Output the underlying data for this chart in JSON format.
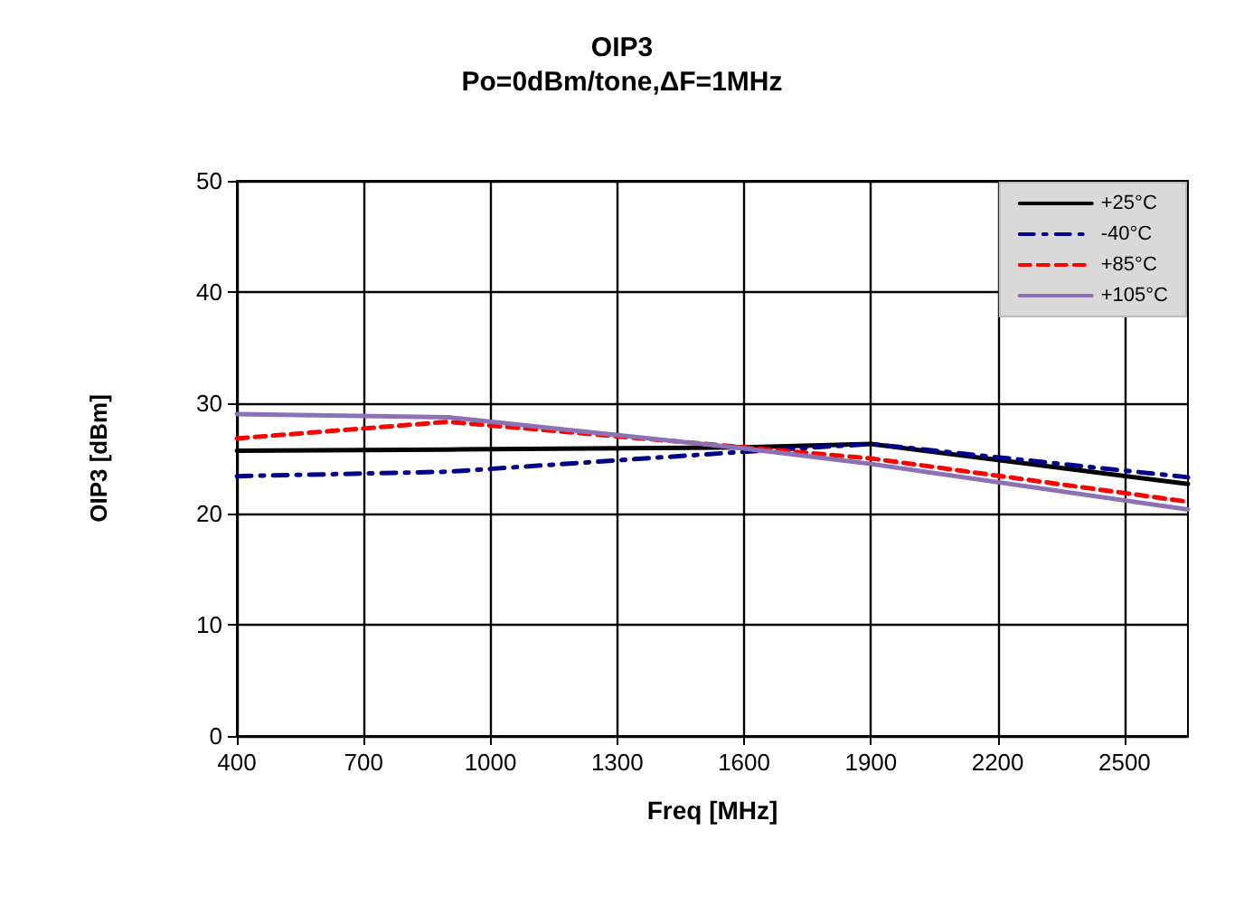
{
  "chart_data": {
    "type": "line",
    "title": "OIP3",
    "subtitle": "Po=0dBm/tone,ΔF=1MHz",
    "xlabel": "Freq [MHz]",
    "ylabel": "OIP3 [dBm]",
    "x": [
      400,
      900,
      1600,
      1900,
      2650
    ],
    "series": [
      {
        "name": "+25°C",
        "color": "#000000",
        "line_style": "solid",
        "values": [
          25.7,
          25.8,
          26.0,
          26.3,
          22.7
        ]
      },
      {
        "name": "-40°C",
        "color": "#00008b",
        "line_style": "dashdot",
        "values": [
          23.4,
          23.8,
          25.6,
          26.3,
          23.3
        ]
      },
      {
        "name": "+85°C",
        "color": "#ff0000",
        "line_style": "dashed",
        "values": [
          26.8,
          28.3,
          26.0,
          25.0,
          21.1
        ]
      },
      {
        "name": "+105°C",
        "color": "#8c72b4",
        "line_style": "solid",
        "values": [
          29.0,
          28.7,
          25.9,
          24.5,
          20.4
        ]
      }
    ],
    "xlim": [
      400,
      2650
    ],
    "xticks": [
      400,
      700,
      1000,
      1300,
      1600,
      1900,
      2200,
      2500
    ],
    "ylim": [
      0,
      50
    ],
    "yticks": [
      0,
      10,
      20,
      30,
      40,
      50
    ],
    "grid": true,
    "legend": "top right",
    "marker": "none"
  }
}
